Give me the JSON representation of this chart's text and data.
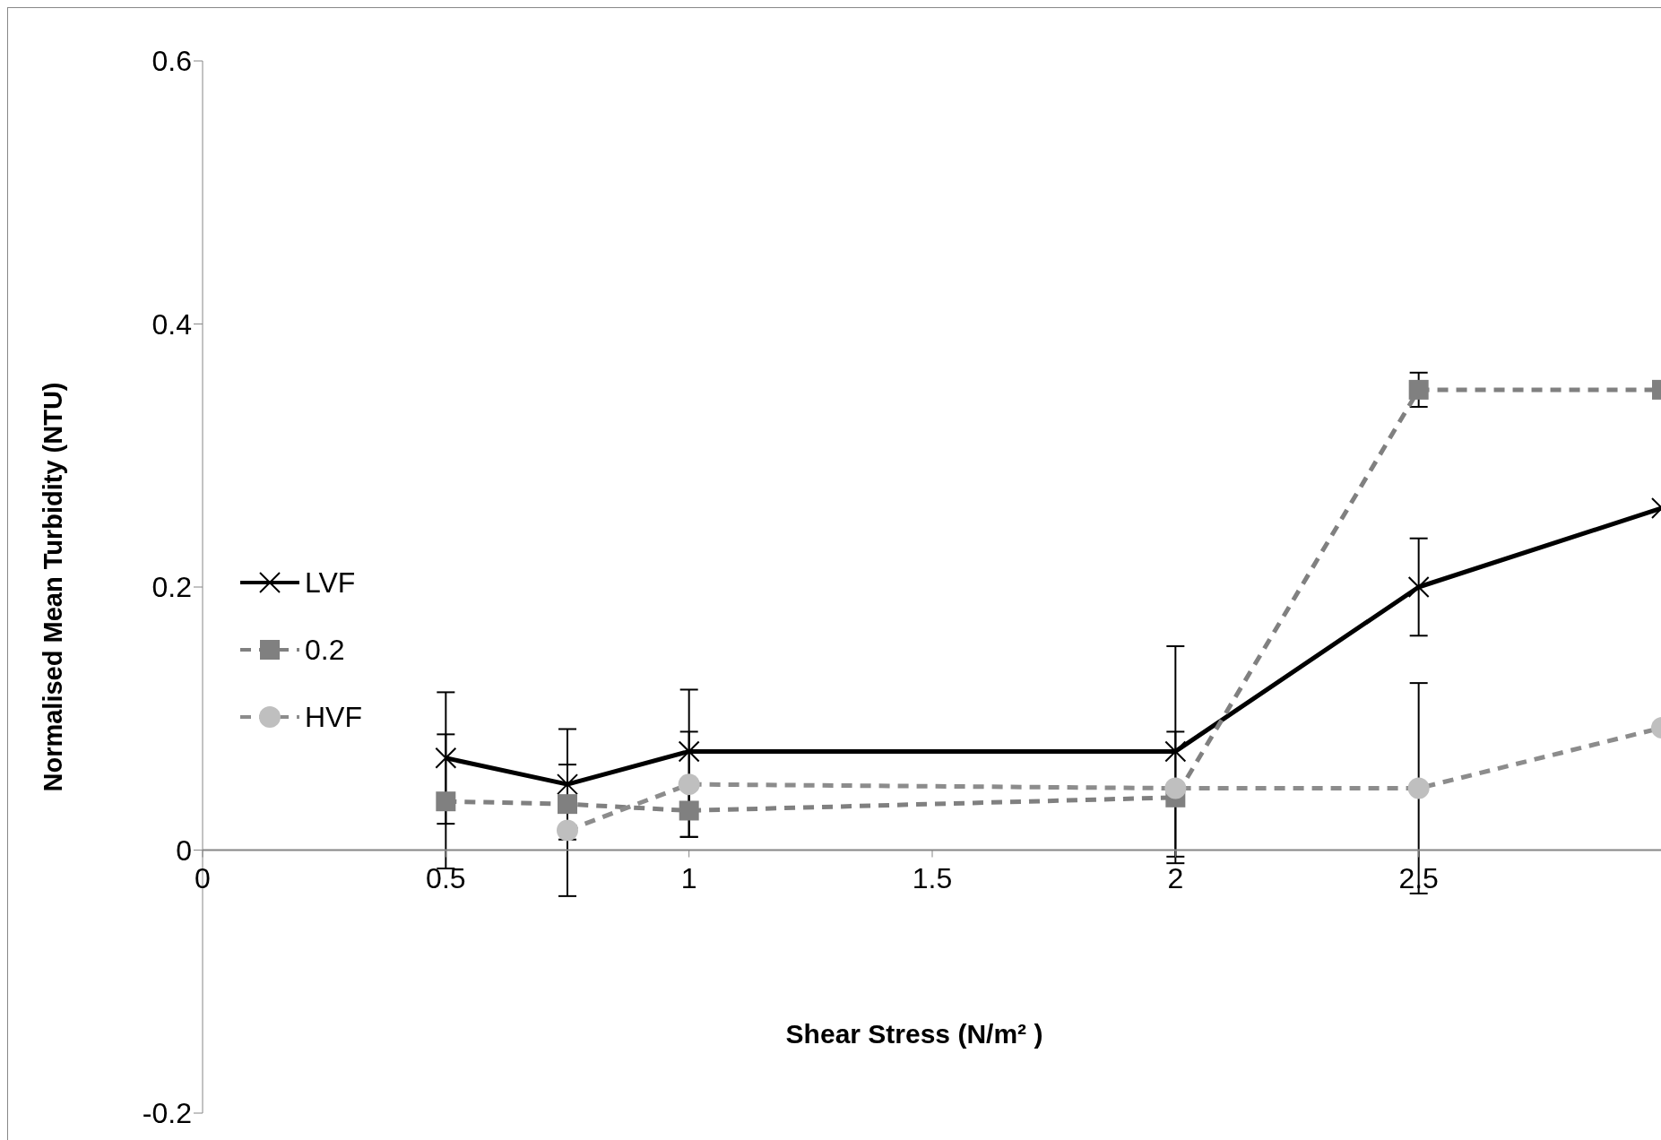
{
  "chart_data": {
    "type": "line",
    "xlabel": "Shear Stress (N/m² )",
    "ylabel": "Normalised Mean Turbidity (NTU)",
    "xlim": [
      0,
      3
    ],
    "xticks": [
      0,
      0.5,
      1,
      1.5,
      2,
      2.5
    ],
    "ylim": [
      -0.2,
      0.6
    ],
    "yticks": [
      -0.2,
      0,
      0.2,
      0.4,
      0.6
    ],
    "grid": false,
    "legend": "left",
    "series": [
      {
        "name": "LVF",
        "color": "#000000",
        "marker": "cross",
        "line_style": "solid",
        "x": [
          0.5,
          0.75,
          1,
          2,
          2.5,
          3
        ],
        "values": [
          0.07,
          0.05,
          0.075,
          0.075,
          0.2,
          0.26
        ],
        "errors": [
          0.05,
          0.042,
          0.047,
          0.08,
          0.037,
          null
        ]
      },
      {
        "name": "0.2",
        "color": "#808080",
        "marker": "square",
        "line_style": "dashed",
        "x": [
          0.5,
          0.75,
          1,
          2,
          2.5,
          3
        ],
        "values": [
          0.037,
          0.035,
          0.03,
          0.04,
          0.35,
          0.35
        ],
        "errors": [
          0.051,
          null,
          0.02,
          0.05,
          0.013,
          null
        ]
      },
      {
        "name": "HVF",
        "color": "#bfbfbf",
        "marker": "circle",
        "line_style": "dashed",
        "x": [
          0.75,
          1,
          2,
          2.5,
          3
        ],
        "values": [
          0.015,
          0.05,
          0.047,
          0.047,
          0.093
        ],
        "errors": [
          0.05,
          0.04,
          null,
          0.08,
          null
        ]
      }
    ]
  }
}
